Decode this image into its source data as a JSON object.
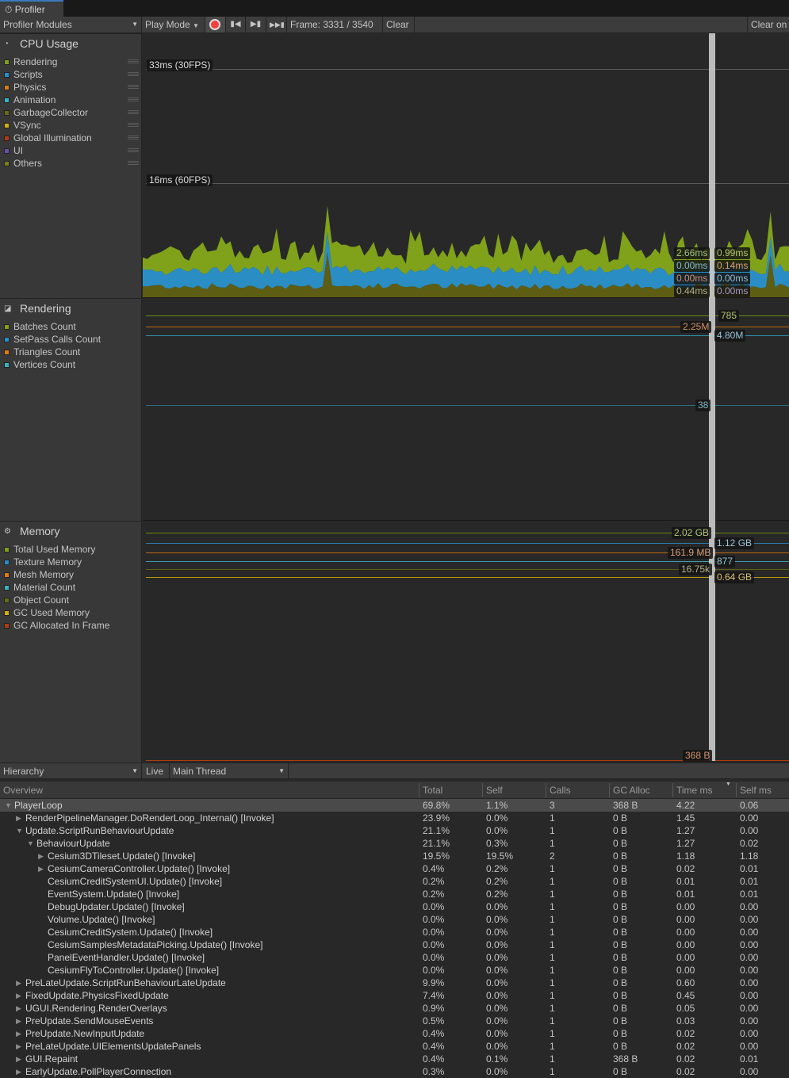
{
  "window": {
    "tab_title": "Profiler"
  },
  "toolbar": {
    "modules": "Profiler Modules",
    "mode": "Play Mode",
    "frame": "Frame: 3331 / 3540",
    "clear": "Clear",
    "clear_on": "Clear on"
  },
  "cpu": {
    "title": "CPU Usage",
    "legend": [
      {
        "label": "Rendering",
        "color": "#7fa21a"
      },
      {
        "label": "Scripts",
        "color": "#2a8ec4"
      },
      {
        "label": "Physics",
        "color": "#e07b12"
      },
      {
        "label": "Animation",
        "color": "#37b3c0"
      },
      {
        "label": "GarbageCollector",
        "color": "#6b6a16"
      },
      {
        "label": "VSync",
        "color": "#d4b000"
      },
      {
        "label": "Global Illumination",
        "color": "#b33a10"
      },
      {
        "label": "UI",
        "color": "#6b4ea8"
      },
      {
        "label": "Others",
        "color": "#7e7d1e"
      }
    ],
    "marker_33": "33ms (30FPS)",
    "marker_16": "16ms (60FPS)",
    "readouts_left": [
      {
        "v": "2.66ms",
        "c": "#a4c27a"
      },
      {
        "v": "0.00ms",
        "c": "#84b8d4"
      },
      {
        "v": "0.00ms",
        "c": "#d4916a"
      },
      {
        "v": "0.44ms",
        "c": "#b4b38a"
      }
    ],
    "readouts_right": [
      {
        "v": "0.99ms",
        "c": "#b4c86a"
      },
      {
        "v": "0.14ms",
        "c": "#d4a07a"
      },
      {
        "v": "0.00ms",
        "c": "#9ab8c8"
      },
      {
        "v": "0.00ms",
        "c": "#a89ac4"
      }
    ]
  },
  "rendering": {
    "title": "Rendering",
    "legend": [
      {
        "label": "Batches Count",
        "color": "#7fa21a"
      },
      {
        "label": "SetPass Calls Count",
        "color": "#2a8ec4"
      },
      {
        "label": "Triangles Count",
        "color": "#e07b12"
      },
      {
        "label": "Vertices Count",
        "color": "#37b3c0"
      }
    ],
    "values": {
      "batches": "785",
      "triangles": "2.25M",
      "vertices": "4.80M",
      "setpass": "38"
    }
  },
  "memory": {
    "title": "Memory",
    "legend": [
      {
        "label": "Total Used Memory",
        "color": "#7fa21a"
      },
      {
        "label": "Texture Memory",
        "color": "#2a8ec4"
      },
      {
        "label": "Mesh Memory",
        "color": "#e07b12"
      },
      {
        "label": "Material Count",
        "color": "#37b3c0"
      },
      {
        "label": "Object Count",
        "color": "#6b6a16"
      },
      {
        "label": "GC Used Memory",
        "color": "#d4b000"
      },
      {
        "label": "GC Allocated In Frame",
        "color": "#b33a10"
      }
    ],
    "values": {
      "total": "2.02 GB",
      "texture": "1.12 GB",
      "mesh": "161.9 MB",
      "material": "877",
      "object": "16.75k",
      "gc_used": "0.64 GB",
      "gc_alloc": "368 B"
    }
  },
  "hierarchy": {
    "view": "Hierarchy",
    "live": "Live",
    "thread": "Main Thread",
    "columns": [
      "Overview",
      "Total",
      "Self",
      "Calls",
      "GC Alloc",
      "Time ms",
      "Self ms"
    ],
    "rows": [
      {
        "name": "PlayerLoop",
        "depth": 0,
        "exp": "open",
        "v": [
          "69.8%",
          "1.1%",
          "3",
          "368 B",
          "4.22",
          "0.06"
        ],
        "selected": true
      },
      {
        "name": "RenderPipelineManager.DoRenderLoop_Internal() [Invoke]",
        "depth": 1,
        "exp": "closed",
        "v": [
          "23.9%",
          "0.0%",
          "1",
          "0 B",
          "1.45",
          "0.00"
        ]
      },
      {
        "name": "Update.ScriptRunBehaviourUpdate",
        "depth": 1,
        "exp": "open",
        "v": [
          "21.1%",
          "0.0%",
          "1",
          "0 B",
          "1.27",
          "0.00"
        ]
      },
      {
        "name": "BehaviourUpdate",
        "depth": 2,
        "exp": "open",
        "v": [
          "21.1%",
          "0.3%",
          "1",
          "0 B",
          "1.27",
          "0.02"
        ]
      },
      {
        "name": "Cesium3DTileset.Update() [Invoke]",
        "depth": 3,
        "exp": "closed",
        "v": [
          "19.5%",
          "19.5%",
          "2",
          "0 B",
          "1.18",
          "1.18"
        ]
      },
      {
        "name": "CesiumCameraController.Update() [Invoke]",
        "depth": 3,
        "exp": "closed",
        "v": [
          "0.4%",
          "0.2%",
          "1",
          "0 B",
          "0.02",
          "0.01"
        ]
      },
      {
        "name": "CesiumCreditSystemUI.Update() [Invoke]",
        "depth": 3,
        "exp": "",
        "v": [
          "0.2%",
          "0.2%",
          "1",
          "0 B",
          "0.01",
          "0.01"
        ]
      },
      {
        "name": "EventSystem.Update() [Invoke]",
        "depth": 3,
        "exp": "",
        "v": [
          "0.2%",
          "0.2%",
          "1",
          "0 B",
          "0.01",
          "0.01"
        ]
      },
      {
        "name": "DebugUpdater.Update() [Invoke]",
        "depth": 3,
        "exp": "",
        "v": [
          "0.0%",
          "0.0%",
          "1",
          "0 B",
          "0.00",
          "0.00"
        ]
      },
      {
        "name": "Volume.Update() [Invoke]",
        "depth": 3,
        "exp": "",
        "v": [
          "0.0%",
          "0.0%",
          "1",
          "0 B",
          "0.00",
          "0.00"
        ]
      },
      {
        "name": "CesiumCreditSystem.Update() [Invoke]",
        "depth": 3,
        "exp": "",
        "v": [
          "0.0%",
          "0.0%",
          "1",
          "0 B",
          "0.00",
          "0.00"
        ]
      },
      {
        "name": "CesiumSamplesMetadataPicking.Update() [Invoke]",
        "depth": 3,
        "exp": "",
        "v": [
          "0.0%",
          "0.0%",
          "1",
          "0 B",
          "0.00",
          "0.00"
        ]
      },
      {
        "name": "PanelEventHandler.Update() [Invoke]",
        "depth": 3,
        "exp": "",
        "v": [
          "0.0%",
          "0.0%",
          "1",
          "0 B",
          "0.00",
          "0.00"
        ]
      },
      {
        "name": "CesiumFlyToController.Update() [Invoke]",
        "depth": 3,
        "exp": "",
        "v": [
          "0.0%",
          "0.0%",
          "1",
          "0 B",
          "0.00",
          "0.00"
        ]
      },
      {
        "name": "PreLateUpdate.ScriptRunBehaviourLateUpdate",
        "depth": 1,
        "exp": "closed",
        "v": [
          "9.9%",
          "0.0%",
          "1",
          "0 B",
          "0.60",
          "0.00"
        ]
      },
      {
        "name": "FixedUpdate.PhysicsFixedUpdate",
        "depth": 1,
        "exp": "closed",
        "v": [
          "7.4%",
          "0.0%",
          "1",
          "0 B",
          "0.45",
          "0.00"
        ]
      },
      {
        "name": "UGUI.Rendering.RenderOverlays",
        "depth": 1,
        "exp": "closed",
        "v": [
          "0.9%",
          "0.0%",
          "1",
          "0 B",
          "0.05",
          "0.00"
        ]
      },
      {
        "name": "PreUpdate.SendMouseEvents",
        "depth": 1,
        "exp": "closed",
        "v": [
          "0.5%",
          "0.0%",
          "1",
          "0 B",
          "0.03",
          "0.00"
        ]
      },
      {
        "name": "PreUpdate.NewInputUpdate",
        "depth": 1,
        "exp": "closed",
        "v": [
          "0.4%",
          "0.0%",
          "1",
          "0 B",
          "0.02",
          "0.00"
        ]
      },
      {
        "name": "PreLateUpdate.UIElementsUpdatePanels",
        "depth": 1,
        "exp": "closed",
        "v": [
          "0.4%",
          "0.0%",
          "1",
          "0 B",
          "0.02",
          "0.00"
        ]
      },
      {
        "name": "GUI.Repaint",
        "depth": 1,
        "exp": "closed",
        "v": [
          "0.4%",
          "0.1%",
          "1",
          "368 B",
          "0.02",
          "0.01"
        ]
      },
      {
        "name": "EarlyUpdate.PollPlayerConnection",
        "depth": 1,
        "exp": "closed",
        "v": [
          "0.3%",
          "0.0%",
          "1",
          "0 B",
          "0.02",
          "0.00"
        ]
      }
    ]
  }
}
